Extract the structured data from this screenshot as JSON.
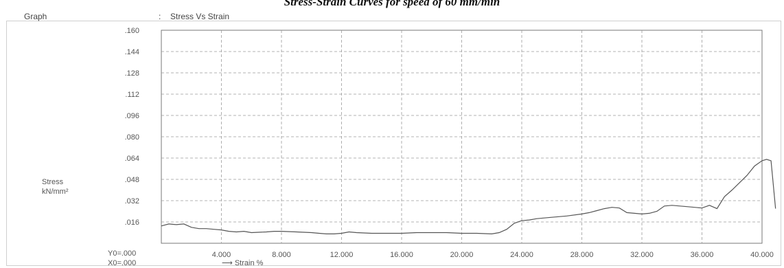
{
  "page_title": "Stress-Strain Curves for speed of 60 mm/min",
  "header": {
    "graph_label": "Graph",
    "separator": ":",
    "graph_title": "Stress Vs Strain"
  },
  "origin": {
    "y0": "Y0=.000",
    "x0": "X0=.000"
  },
  "chart_data": {
    "type": "line",
    "title": "Stress Vs Strain",
    "xlabel": "Strain %",
    "ylabel": "Stress kN/mm²",
    "ylabel_lines": [
      "Stress",
      "kN/mm²"
    ],
    "xlim": [
      0,
      40
    ],
    "ylim": [
      0,
      0.16
    ],
    "grid": true,
    "x_ticks": [
      {
        "value": 4,
        "label": "4.000"
      },
      {
        "value": 8,
        "label": "8.000"
      },
      {
        "value": 12,
        "label": "12.000"
      },
      {
        "value": 16,
        "label": "16.000"
      },
      {
        "value": 20,
        "label": "20.000"
      },
      {
        "value": 24,
        "label": "24.000"
      },
      {
        "value": 28,
        "label": "28.000"
      },
      {
        "value": 32,
        "label": "32.000"
      },
      {
        "value": 36,
        "label": "36.000"
      },
      {
        "value": 40,
        "label": "40.000"
      }
    ],
    "y_ticks": [
      {
        "value": 0.016,
        "label": ".016"
      },
      {
        "value": 0.032,
        "label": ".032"
      },
      {
        "value": 0.048,
        "label": ".048"
      },
      {
        "value": 0.064,
        "label": ".064"
      },
      {
        "value": 0.08,
        "label": ".080"
      },
      {
        "value": 0.096,
        "label": ".096"
      },
      {
        "value": 0.112,
        "label": ".112"
      },
      {
        "value": 0.128,
        "label": ".128"
      },
      {
        "value": 0.144,
        "label": ".144"
      },
      {
        "value": 0.16,
        "label": ".160"
      }
    ],
    "series": [
      {
        "color": "#555555",
        "points": [
          [
            0,
            0.013
          ],
          [
            0.5,
            0.0145
          ],
          [
            1,
            0.014
          ],
          [
            1.5,
            0.0145
          ],
          [
            2,
            0.012
          ],
          [
            2.5,
            0.011
          ],
          [
            3,
            0.011
          ],
          [
            3.5,
            0.0105
          ],
          [
            4,
            0.01
          ],
          [
            4.5,
            0.009
          ],
          [
            5,
            0.0085
          ],
          [
            5.5,
            0.009
          ],
          [
            6,
            0.008
          ],
          [
            7,
            0.0085
          ],
          [
            7.5,
            0.009
          ],
          [
            8,
            0.009
          ],
          [
            9,
            0.0085
          ],
          [
            10,
            0.008
          ],
          [
            10.5,
            0.0075
          ],
          [
            11,
            0.007
          ],
          [
            11.5,
            0.007
          ],
          [
            12,
            0.0075
          ],
          [
            12.5,
            0.0085
          ],
          [
            13,
            0.008
          ],
          [
            14,
            0.0075
          ],
          [
            15,
            0.0075
          ],
          [
            16,
            0.0075
          ],
          [
            17,
            0.008
          ],
          [
            18,
            0.008
          ],
          [
            19,
            0.008
          ],
          [
            20,
            0.0075
          ],
          [
            21,
            0.0075
          ],
          [
            22,
            0.007
          ],
          [
            22.5,
            0.008
          ],
          [
            23,
            0.0105
          ],
          [
            23.5,
            0.015
          ],
          [
            24,
            0.017
          ],
          [
            24.5,
            0.0175
          ],
          [
            25,
            0.0185
          ],
          [
            26,
            0.0195
          ],
          [
            27,
            0.0205
          ],
          [
            28,
            0.022
          ],
          [
            28.5,
            0.023
          ],
          [
            29,
            0.0245
          ],
          [
            29.5,
            0.026
          ],
          [
            30,
            0.027
          ],
          [
            30.5,
            0.0265
          ],
          [
            31,
            0.023
          ],
          [
            32,
            0.022
          ],
          [
            32.5,
            0.0225
          ],
          [
            33,
            0.024
          ],
          [
            33.5,
            0.028
          ],
          [
            34,
            0.0285
          ],
          [
            35,
            0.0275
          ],
          [
            36,
            0.0265
          ],
          [
            36.5,
            0.0285
          ],
          [
            37,
            0.026
          ],
          [
            37.5,
            0.035
          ],
          [
            38,
            0.04
          ],
          [
            39,
            0.051
          ],
          [
            39.5,
            0.058
          ],
          [
            40,
            0.062
          ],
          [
            40.3,
            0.063
          ],
          [
            40.6,
            0.062
          ],
          [
            40.9,
            0.026
          ]
        ]
      }
    ]
  }
}
